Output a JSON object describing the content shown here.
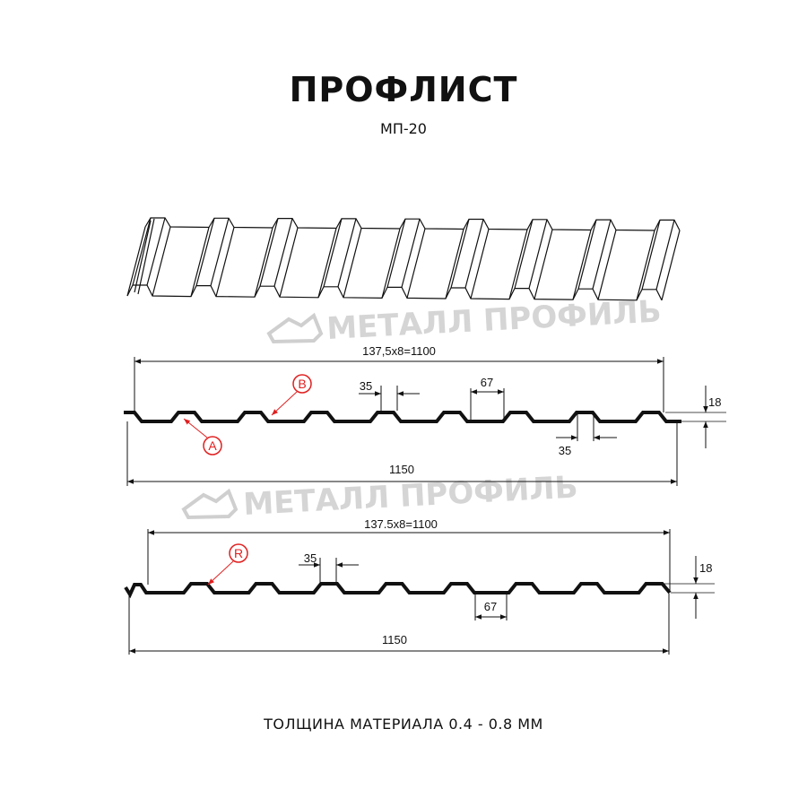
{
  "header": {
    "title": "ПРОФЛИСТ",
    "subtitle": "МП-20"
  },
  "watermark": {
    "text": "МЕТАЛЛ ПРОФИЛЬ"
  },
  "profile_a": {
    "pitch_label": "137,5x8=1100",
    "total_label": "1150",
    "crest_label": "35",
    "valley_label": "67",
    "bottom_crest_label": "35",
    "height_label": "18",
    "marker_a": "A",
    "marker_b": "B"
  },
  "profile_r": {
    "pitch_label": "137.5x8=1100",
    "total_label": "1150",
    "crest_label": "35",
    "valley_label": "67",
    "height_label": "18",
    "marker_r": "R"
  },
  "footer": {
    "thickness": "ТОЛЩИНА МАТЕРИАЛА 0.4 - 0.8 ММ"
  },
  "colors": {
    "profile": "#111111",
    "marker": "#e02020",
    "watermark": "#c8c8c8"
  }
}
